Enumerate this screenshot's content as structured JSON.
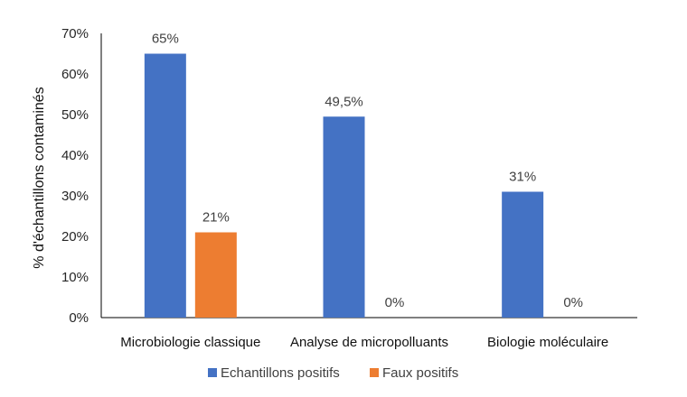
{
  "chart_data": {
    "type": "bar",
    "title": "",
    "xlabel": "",
    "ylabel": "% d'échantillons contaminés",
    "ylim": [
      0,
      70
    ],
    "yticks": [
      "0%",
      "10%",
      "20%",
      "30%",
      "40%",
      "50%",
      "60%",
      "70%"
    ],
    "categories": [
      "Microbiologie classique",
      "Analyse de micropolluants",
      "Biologie moléculaire"
    ],
    "series": [
      {
        "name": "Echantillons positifs",
        "color": "#4472C4",
        "values": [
          65,
          49.5,
          31
        ],
        "labels": [
          "65%",
          "49,5%",
          "31%"
        ]
      },
      {
        "name": "Faux positifs",
        "color": "#ED7D31",
        "values": [
          21,
          0,
          0
        ],
        "labels": [
          "21%",
          "0%",
          "0%"
        ]
      }
    ],
    "grid": false,
    "legend": "bottom"
  }
}
